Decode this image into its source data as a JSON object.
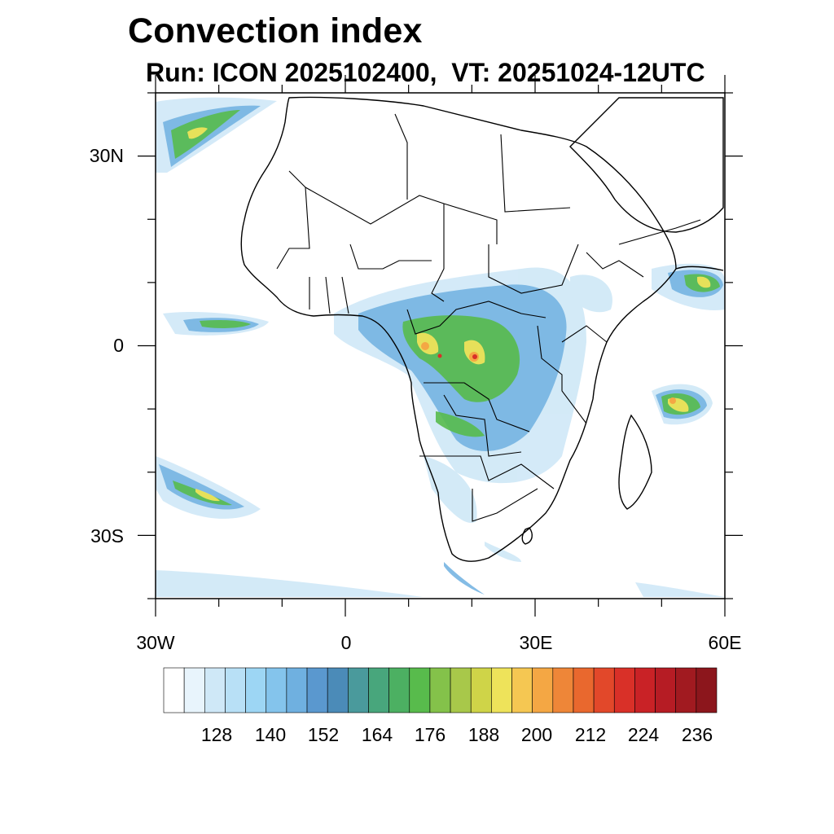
{
  "title": "Convection index",
  "subtitle": "Run: ICON 2025102400,  VT: 20251024-12UTC",
  "map": {
    "lon_range": [
      -30,
      60
    ],
    "lat_range": [
      -40,
      40
    ],
    "x_ticks": [
      {
        "value": -30,
        "label": "30W"
      },
      {
        "value": 0,
        "label": "0"
      },
      {
        "value": 30,
        "label": "30E"
      },
      {
        "value": 60,
        "label": "60E"
      }
    ],
    "y_ticks": [
      {
        "value": 30,
        "label": "30N"
      },
      {
        "value": 0,
        "label": "0"
      },
      {
        "value": -30,
        "label": "30S"
      }
    ]
  },
  "colorbar": {
    "labels": [
      "128",
      "140",
      "152",
      "164",
      "176",
      "188",
      "200",
      "212",
      "224",
      "236"
    ],
    "colors": [
      "#ffffff",
      "#e8f4fc",
      "#cfe8f7",
      "#b8e0f6",
      "#9dd6f4",
      "#84c4ec",
      "#6fb0e0",
      "#5a98cf",
      "#4b8bb8",
      "#4a9a9c",
      "#48a67c",
      "#4cb062",
      "#58bb4c",
      "#84c24a",
      "#a8c84a",
      "#cfd448",
      "#eee35a",
      "#f5c752",
      "#f4a744",
      "#ee8638",
      "#e9682e",
      "#e2482a",
      "#d93028",
      "#c92226",
      "#b61c24",
      "#a11a20",
      "#8c161c"
    ]
  }
}
